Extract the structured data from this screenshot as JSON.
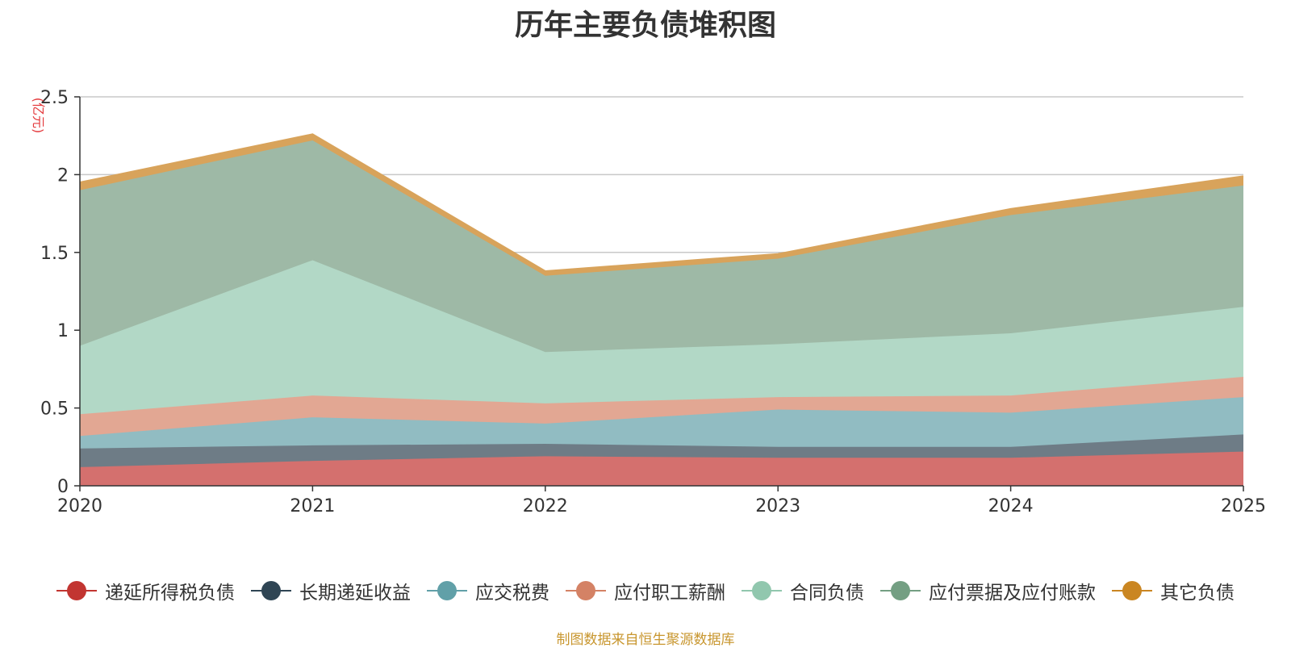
{
  "chart_data": {
    "type": "area",
    "stacked": true,
    "title": "历年主要负债堆积图",
    "unit_label": "(亿元)",
    "unit_color": "#e4393c",
    "x": [
      "2020",
      "2021",
      "2022",
      "2023",
      "2024",
      "2025"
    ],
    "ylim": [
      0,
      2.5
    ],
    "yticks": [
      "0",
      "0.5",
      "1",
      "1.5",
      "2",
      "2.5"
    ],
    "ytick_values": [
      0,
      0.5,
      1,
      1.5,
      2,
      2.5
    ],
    "grid": true,
    "legend_position": "bottom",
    "series": [
      {
        "name": "递延所得税负债",
        "color": "#c23531",
        "area_color": "#d4706e",
        "values": [
          0.12,
          0.16,
          0.19,
          0.18,
          0.18,
          0.22
        ]
      },
      {
        "name": "长期递延收益",
        "color": "#2f4554",
        "area_color": "#6e7c86",
        "values": [
          0.12,
          0.1,
          0.08,
          0.07,
          0.07,
          0.11
        ]
      },
      {
        "name": "应交税费",
        "color": "#61a0a8",
        "area_color": "#91bcc2",
        "values": [
          0.08,
          0.18,
          0.13,
          0.24,
          0.22,
          0.24
        ]
      },
      {
        "name": "应付职工薪酬",
        "color": "#d48265",
        "area_color": "#e2a793",
        "values": [
          0.14,
          0.14,
          0.13,
          0.08,
          0.11,
          0.13
        ]
      },
      {
        "name": "合同负债",
        "color": "#91c7ae",
        "area_color": "#b2d8c6",
        "values": [
          0.44,
          0.87,
          0.33,
          0.34,
          0.4,
          0.45
        ]
      },
      {
        "name": "应付票据及应付账款",
        "color": "#749f83",
        "area_color": "#9eb9a6",
        "values": [
          1.0,
          0.77,
          0.49,
          0.55,
          0.76,
          0.78
        ]
      },
      {
        "name": "其它负债",
        "color": "#ca8622",
        "area_color": "#d8a35b",
        "values": [
          0.05,
          0.04,
          0.03,
          0.03,
          0.04,
          0.06
        ]
      }
    ]
  },
  "footer": {
    "source_note": "制图数据来自恒生聚源数据库"
  }
}
